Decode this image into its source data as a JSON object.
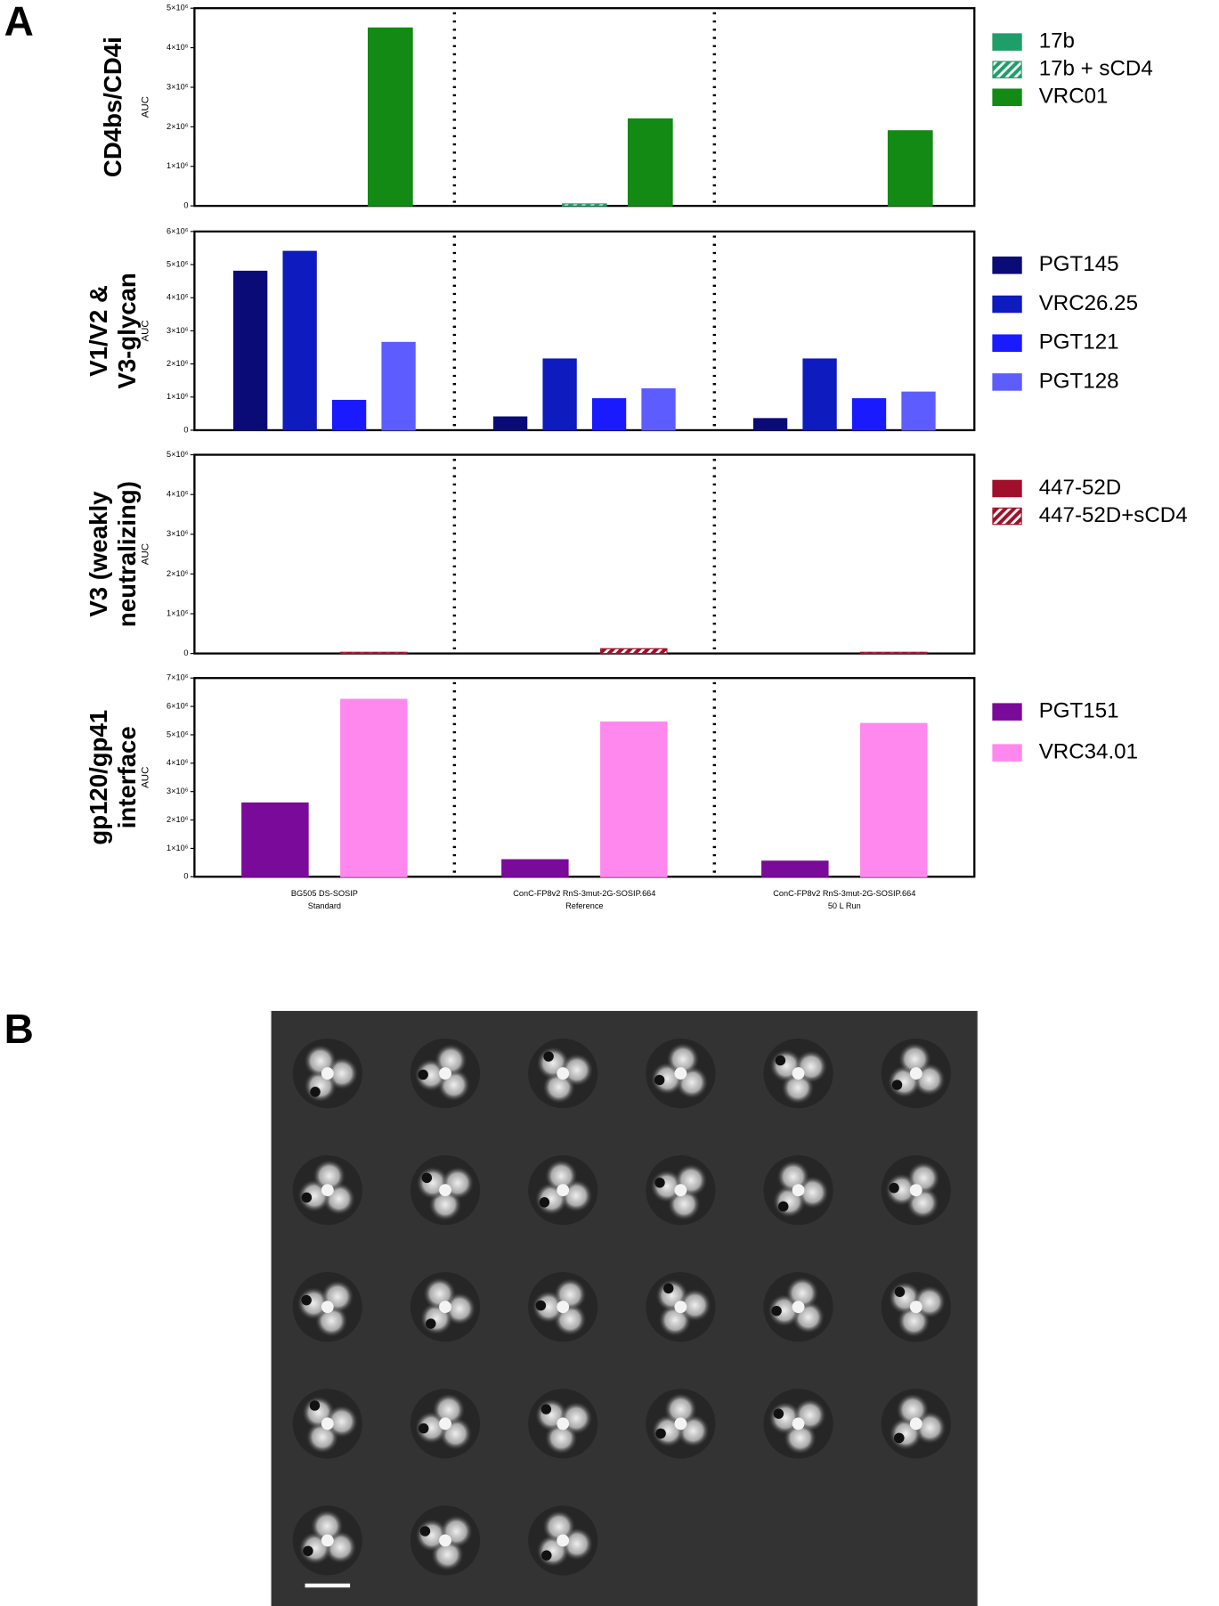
{
  "panel_labels": [
    "A",
    "B"
  ],
  "chart_data": [
    {
      "type": "bar",
      "title": [
        "CD4bs/CD4i"
      ],
      "ylabel": "AUC",
      "categories": [
        null,
        null,
        null
      ],
      "ylim": [
        0,
        5000000
      ],
      "yticks": [
        0,
        {
          "value": 1000000,
          "label": "1×10⁶"
        },
        {
          "value": 2000000,
          "label": "2×10⁶"
        },
        {
          "value": 3000000,
          "label": "3×10⁶"
        },
        {
          "value": 4000000,
          "label": "4×10⁶"
        },
        {
          "value": 5000000,
          "label": "5×10⁶"
        }
      ],
      "series": [
        {
          "name": "17b",
          "color": "#1f9e6a",
          "hatch": false,
          "values": [
            0,
            0,
            0
          ]
        },
        {
          "name": "17b + sCD4",
          "color": "#1f9e6a",
          "hatch": true,
          "values": [
            0,
            50000,
            0
          ]
        },
        {
          "name": "VRC01",
          "color": "#138a13",
          "hatch": false,
          "values": [
            4500000,
            2200000,
            1900000
          ]
        }
      ]
    },
    {
      "type": "bar",
      "title": [
        "V1/V2 &",
        "V3-glycan"
      ],
      "ylabel": "AUC",
      "categories": [
        null,
        null,
        null
      ],
      "ylim": [
        0,
        6000000
      ],
      "yticks": [
        0,
        {
          "value": 1000000,
          "label": "1×10⁶"
        },
        {
          "value": 2000000,
          "label": "2×10⁶"
        },
        {
          "value": 3000000,
          "label": "3×10⁶"
        },
        {
          "value": 4000000,
          "label": "4×10⁶"
        },
        {
          "value": 5000000,
          "label": "5×10⁶"
        },
        {
          "value": 6000000,
          "label": "6×10⁶"
        }
      ],
      "series": [
        {
          "name": "PGT145",
          "color": "#0b0b78",
          "hatch": false,
          "values": [
            4800000,
            400000,
            350000
          ]
        },
        {
          "name": "VRC26.25",
          "color": "#0d1bbf",
          "hatch": false,
          "values": [
            5400000,
            2150000,
            2150000
          ]
        },
        {
          "name": "PGT121",
          "color": "#1a1aff",
          "hatch": false,
          "values": [
            900000,
            950000,
            950000
          ]
        },
        {
          "name": "PGT128",
          "color": "#5c5cff",
          "hatch": false,
          "values": [
            2650000,
            1250000,
            1150000
          ]
        }
      ]
    },
    {
      "type": "bar",
      "title": [
        "V3 (weakly",
        "neutralizing)"
      ],
      "ylabel": "AUC",
      "categories": [
        null,
        null,
        null
      ],
      "ylim": [
        0,
        5000000
      ],
      "yticks": [
        0,
        {
          "value": 1000000,
          "label": "1×10⁶"
        },
        {
          "value": 2000000,
          "label": "2×10⁶"
        },
        {
          "value": 3000000,
          "label": "3×10⁶"
        },
        {
          "value": 4000000,
          "label": "4×10⁶"
        },
        {
          "value": 5000000,
          "label": "5×10⁶"
        }
      ],
      "series": [
        {
          "name": "447-52D",
          "color": "#a0102a",
          "hatch": false,
          "values": [
            0,
            0,
            0
          ]
        },
        {
          "name": "447-52D+sCD4",
          "color": "#a0102a",
          "hatch": true,
          "values": [
            30000,
            120000,
            30000
          ]
        }
      ]
    },
    {
      "type": "bar",
      "title": [
        "gp120/gp41",
        "interface"
      ],
      "ylabel": "AUC",
      "categories": [
        [
          "BG505 DS-SOSIP",
          "Standard"
        ],
        [
          "ConC-FP8v2 RnS-3mut-2G-SOSIP.664",
          "Reference"
        ],
        [
          "ConC-FP8v2 RnS-3mut-2G-SOSIP.664",
          "50 L Run"
        ]
      ],
      "ylim": [
        0,
        7000000
      ],
      "yticks": [
        0,
        {
          "value": 1000000,
          "label": "1×10⁶"
        },
        {
          "value": 2000000,
          "label": "2×10⁶"
        },
        {
          "value": 3000000,
          "label": "3×10⁶"
        },
        {
          "value": 4000000,
          "label": "4×10⁶"
        },
        {
          "value": 5000000,
          "label": "5×10⁶"
        },
        {
          "value": 6000000,
          "label": "6×10⁶"
        },
        {
          "value": 7000000,
          "label": "7×10⁶"
        }
      ],
      "series": [
        {
          "name": "PGT151",
          "color": "#7a0a9a",
          "hatch": false,
          "values": [
            2600000,
            600000,
            550000
          ]
        },
        {
          "name": "VRC34.01",
          "color": "#ff88ee",
          "hatch": false,
          "values": [
            6250000,
            5450000,
            5400000
          ]
        }
      ]
    }
  ]
}
